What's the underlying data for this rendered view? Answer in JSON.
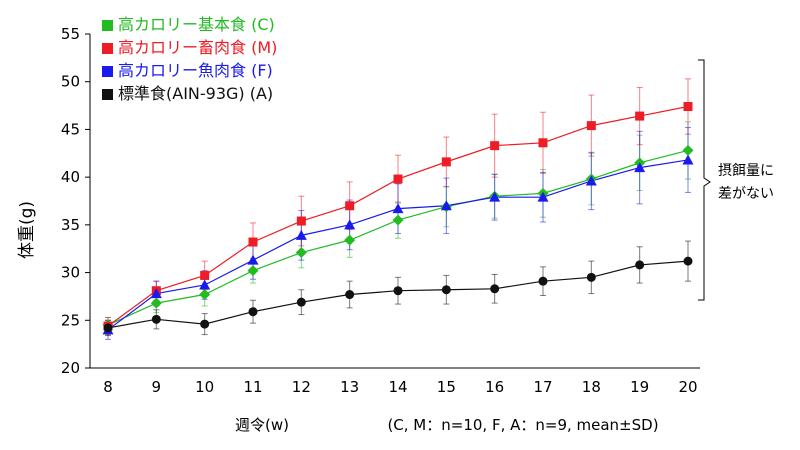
{
  "chart_data": {
    "type": "line",
    "ylabel": "体重(g)",
    "xlabel": "週令(w)",
    "note": "(C, M：n=10, F, A：n=9, mean±SD)",
    "x": [
      8,
      9,
      10,
      11,
      12,
      13,
      14,
      15,
      16,
      17,
      18,
      19,
      20
    ],
    "xlim": [
      8,
      20
    ],
    "ylim": [
      20,
      55
    ],
    "yticks": [
      20,
      25,
      30,
      35,
      40,
      45,
      50,
      55
    ],
    "grid": false,
    "legend_position": "top-left",
    "series": [
      {
        "name": "高カロリー基本食 (C)",
        "color": "#22bb22",
        "marker": "diamond",
        "values": [
          24.5,
          26.8,
          27.7,
          30.2,
          32.1,
          33.4,
          35.5,
          36.9,
          38.0,
          38.3,
          39.8,
          41.5,
          42.8
        ],
        "sd": [
          0.8,
          1.0,
          1.2,
          1.3,
          1.6,
          1.8,
          1.9,
          2.1,
          2.3,
          2.5,
          2.7,
          2.9,
          3.0
        ]
      },
      {
        "name": "高カロリー畜肉食 (M)",
        "color": "#ee1c24",
        "marker": "square",
        "values": [
          24.4,
          28.1,
          29.7,
          33.2,
          35.4,
          37.0,
          39.8,
          41.6,
          43.3,
          43.6,
          45.4,
          46.4,
          47.4
        ],
        "sd": [
          0.9,
          1.0,
          1.5,
          2.0,
          2.6,
          2.5,
          2.5,
          2.6,
          3.3,
          3.2,
          3.2,
          3.0,
          2.9
        ]
      },
      {
        "name": "高カロリー魚肉食 (F)",
        "color": "#1a1aee",
        "marker": "triangle",
        "values": [
          24.0,
          27.8,
          28.7,
          31.3,
          33.9,
          35.0,
          36.7,
          37.0,
          37.9,
          37.9,
          39.6,
          41.0,
          41.8
        ],
        "sd": [
          1.0,
          1.3,
          1.5,
          2.0,
          2.6,
          2.6,
          2.6,
          2.9,
          2.4,
          2.6,
          3.0,
          3.8,
          3.4
        ]
      },
      {
        "name": "標準食(AIN-93G) (A)",
        "color": "#111111",
        "marker": "circle",
        "values": [
          24.2,
          25.1,
          24.6,
          25.9,
          26.9,
          27.7,
          28.1,
          28.2,
          28.3,
          29.1,
          29.5,
          30.8,
          31.2
        ],
        "sd": [
          0.8,
          1.0,
          1.1,
          1.2,
          1.3,
          1.4,
          1.4,
          1.5,
          1.5,
          1.5,
          1.7,
          1.9,
          2.1
        ]
      }
    ],
    "annotation": [
      "摂餌量に",
      "差がない"
    ]
  }
}
